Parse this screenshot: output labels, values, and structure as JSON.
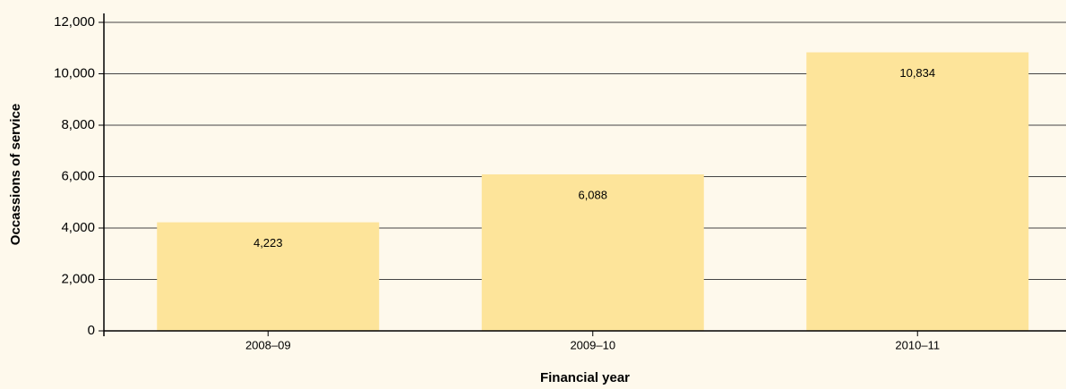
{
  "chart_data": {
    "type": "bar",
    "x_label": "Financial year",
    "y_label": "Occassions of service",
    "categories": [
      "2008–09",
      "2009–10",
      "2010–11"
    ],
    "values": [
      4223,
      6088,
      10834
    ],
    "value_labels": [
      "4,223",
      "6,088",
      "10,834"
    ],
    "color": "#fde49a",
    "ylim": [
      0,
      12000
    ],
    "yticks": [
      0,
      {
        "value": 2000,
        "label": "2,000"
      },
      {
        "value": 4000,
        "label": "4,000"
      },
      {
        "value": 6000,
        "label": "6,000"
      },
      {
        "value": 8000,
        "label": "8,000"
      },
      {
        "value": 10000,
        "label": "10,000"
      },
      {
        "value": 12000,
        "label": "12,000"
      }
    ],
    "grid": true
  }
}
